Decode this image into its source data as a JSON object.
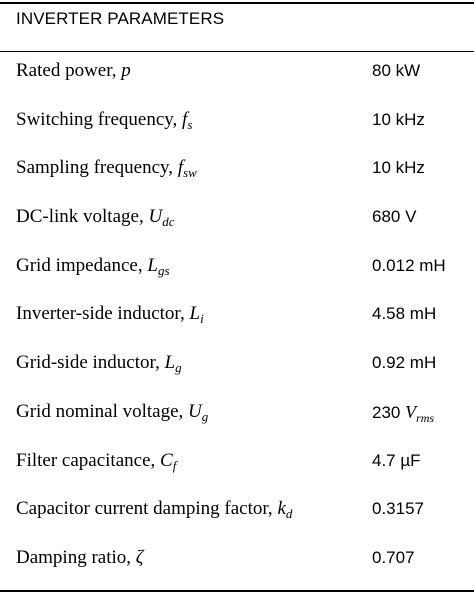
{
  "table": {
    "header": "INVERTER PARAMETERS",
    "rows": [
      {
        "label": "Rated power, ",
        "symbol": "p",
        "subscript": "",
        "value": "80 kW"
      },
      {
        "label": "Switching frequency, ",
        "symbol": "f",
        "subscript": "s",
        "value": "10 kHz"
      },
      {
        "label": "Sampling frequency, ",
        "symbol": "f",
        "subscript": "sw",
        "value": "10 kHz"
      },
      {
        "label": "DC-link voltage, ",
        "symbol": "U",
        "subscript": "dc",
        "value": "680 V"
      },
      {
        "label": "Grid impedance, ",
        "symbol": "L",
        "subscript": "gs",
        "value": "0.012 mH"
      },
      {
        "label": "Inverter-side inductor, ",
        "symbol": "L",
        "subscript": "i",
        "value": "4.58 mH"
      },
      {
        "label": "Grid-side inductor, ",
        "symbol": "L",
        "subscript": "g",
        "value": "0.92 mH"
      },
      {
        "label": "Grid nominal voltage, ",
        "symbol": "U",
        "subscript": "g",
        "value": "230 ",
        "value_symbol": "V",
        "value_subscript": "rms"
      },
      {
        "label": "Filter capacitance, ",
        "symbol": "C",
        "subscript": "f",
        "value": "4.7 µF"
      },
      {
        "label": "Capacitor current damping factor, ",
        "symbol": "k",
        "subscript": "d",
        "value": "0.3157"
      },
      {
        "label": "Damping ratio, ",
        "symbol": "ζ",
        "subscript": "",
        "value": "0.707"
      }
    ]
  }
}
